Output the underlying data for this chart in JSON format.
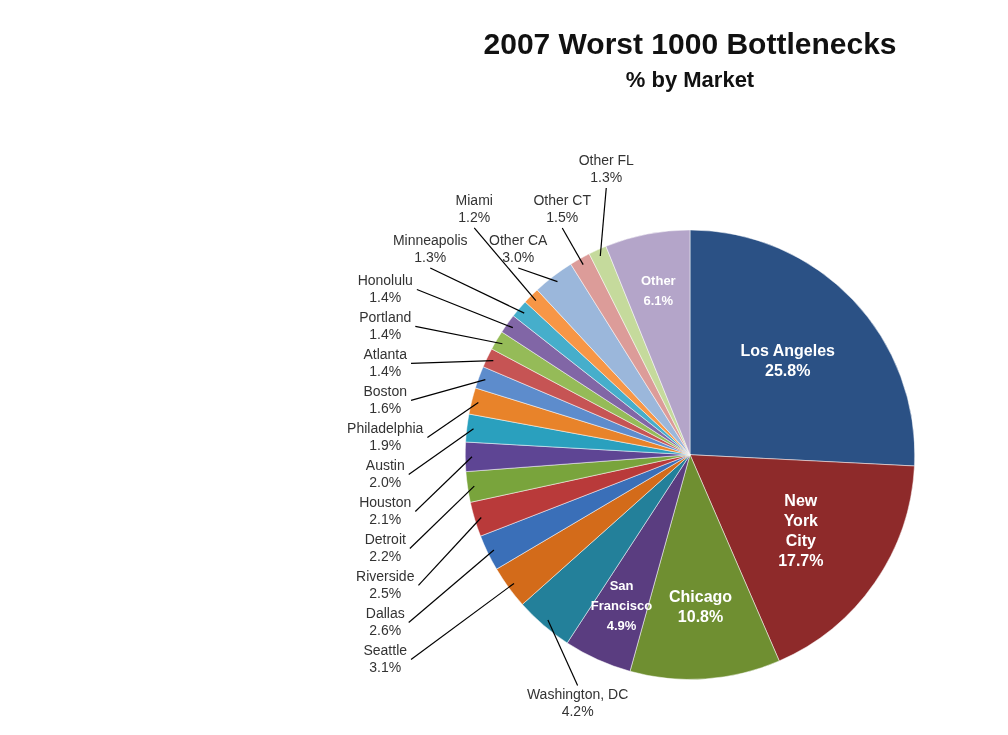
{
  "chart_data": {
    "type": "pie",
    "title": "2007 Worst 1000 Bottlenecks",
    "subtitle": "% by Market",
    "categories": [
      "Los Angeles",
      "New York City",
      "Chicago",
      "San Francisco",
      "Washington, DC",
      "Seattle",
      "Dallas",
      "Riverside",
      "Detroit",
      "Houston",
      "Austin",
      "Philadelphia",
      "Boston",
      "Atlanta",
      "Portland",
      "Honolulu",
      "Minneapolis",
      "Miami",
      "Other CA",
      "Other CT",
      "Other FL",
      "Other"
    ],
    "values": [
      25.8,
      17.7,
      10.8,
      4.9,
      4.2,
      3.1,
      2.6,
      2.5,
      2.2,
      2.1,
      2.0,
      1.9,
      1.6,
      1.4,
      1.4,
      1.4,
      1.3,
      1.2,
      3.0,
      1.5,
      1.3,
      6.1
    ],
    "value_labels": [
      "25.8%",
      "17.7%",
      "10.8%",
      "4.9%",
      "4.2%",
      "3.1%",
      "2.6%",
      "2.5%",
      "2.2%",
      "2.1%",
      "2.0%",
      "1.9%",
      "1.6%",
      "1.4%",
      "1.4%",
      "1.4%",
      "1.3%",
      "1.2%",
      "3.0%",
      "1.5%",
      "1.3%",
      "6.1%"
    ],
    "colors": [
      "#2b5185",
      "#8e2a2a",
      "#6f8f31",
      "#5a3d80",
      "#23809a",
      "#d36b1a",
      "#3a6fb8",
      "#b93a3a",
      "#79a43c",
      "#5e4594",
      "#2aa0be",
      "#e8832a",
      "#5d8ccc",
      "#c65454",
      "#95bb58",
      "#8166a6",
      "#46aecb",
      "#f79646",
      "#9bb7db",
      "#dc9c99",
      "#c5da9c",
      "#b4a5c9"
    ],
    "legend": false
  }
}
